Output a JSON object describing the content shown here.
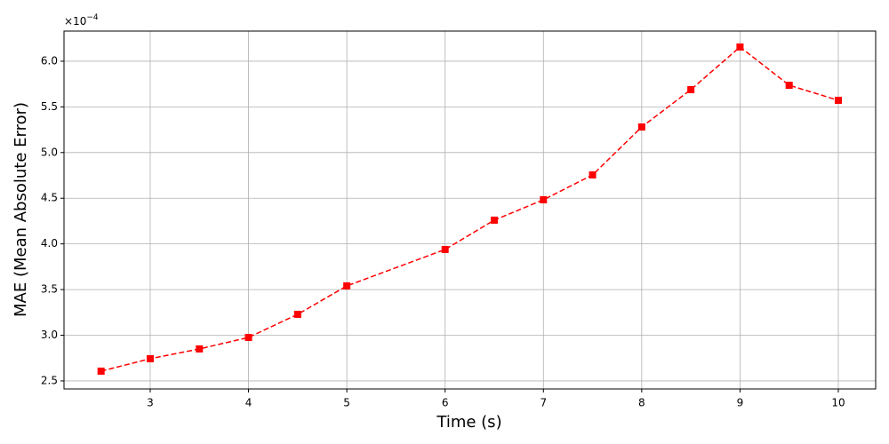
{
  "chart_data": {
    "type": "line",
    "xlabel": "Time (s)",
    "ylabel": "MAE (Mean Absolute Error)",
    "axis_multiplier": {
      "base": "×10",
      "exponent": "−4"
    },
    "x": [
      2.5,
      3,
      3.5,
      4,
      4.5,
      5,
      6,
      6.5,
      7,
      7.5,
      8,
      8.5,
      9,
      9.5,
      10
    ],
    "values": [
      2.607,
      2.743,
      2.85,
      2.976,
      3.229,
      3.54,
      3.939,
      4.26,
      4.483,
      4.755,
      5.28,
      5.689,
      6.156,
      5.737,
      5.572
    ],
    "color": "#ff0000",
    "line_style": "dashed",
    "marker": "square",
    "xlim": [
      2.123,
      10.38
    ],
    "ylim": [
      2.412,
      6.33
    ],
    "xticks": [
      3,
      4,
      5,
      6,
      7,
      8,
      9,
      10
    ],
    "yticks": [
      2.5,
      {
        "value": 3,
        "label": "3.0"
      },
      3.5,
      {
        "value": 4,
        "label": "4.0"
      },
      4.5,
      {
        "value": 5,
        "label": "5.0"
      },
      5.5,
      {
        "value": 6,
        "label": "6.0"
      }
    ],
    "grid": true
  }
}
